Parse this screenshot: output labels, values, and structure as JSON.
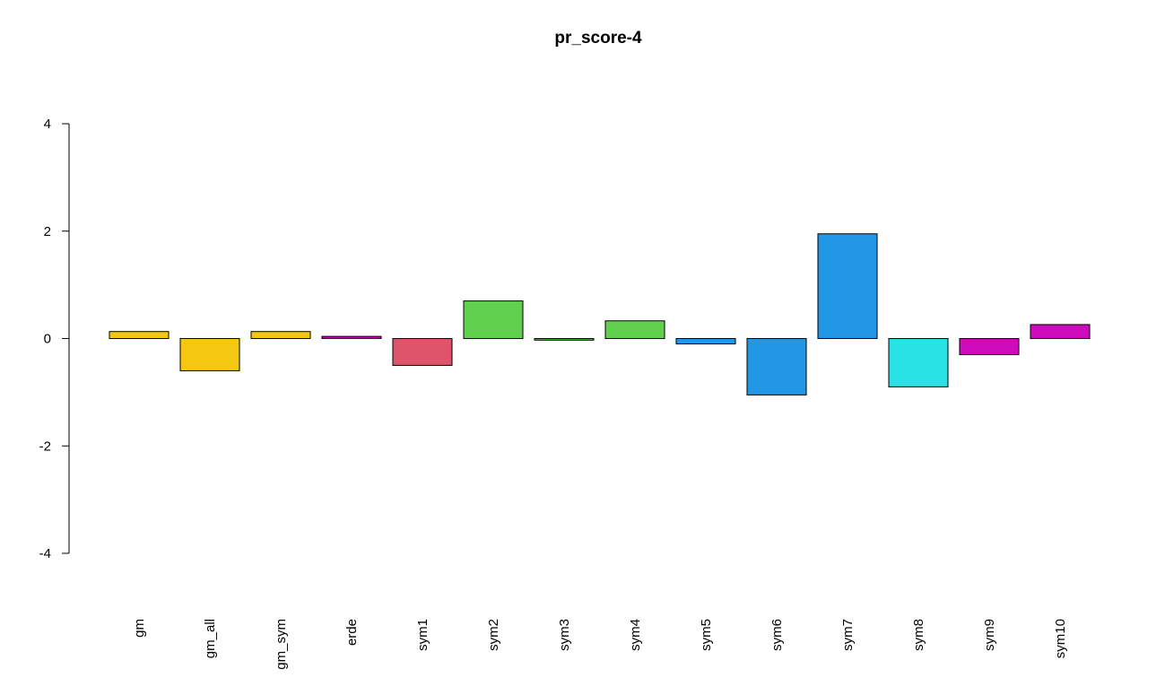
{
  "chart_data": {
    "type": "bar",
    "title": "pr_score-4",
    "xlabel": "",
    "ylabel": "",
    "ylim": [
      -4,
      4
    ],
    "yticks": [
      -4,
      -2,
      0,
      2,
      4
    ],
    "grid": false,
    "legend": "none",
    "categories": [
      "gm",
      "gm_all",
      "gm_sym",
      "erde",
      "sym1",
      "sym2",
      "sym3",
      "sym4",
      "sym5",
      "sym6",
      "sym7",
      "sym8",
      "sym9",
      "sym10"
    ],
    "values": [
      0.13,
      -0.6,
      0.13,
      0.04,
      -0.5,
      0.7,
      -0.03,
      0.33,
      -0.1,
      -1.05,
      1.95,
      -0.9,
      -0.3,
      0.26
    ],
    "colors": [
      "#F5C710",
      "#F5C710",
      "#F5C710",
      "#CD0BBC",
      "#DF536B",
      "#61D04F",
      "#61D04F",
      "#61D04F",
      "#2297E6",
      "#2297E6",
      "#2297E6",
      "#28E2E5",
      "#CD0BBC",
      "#CD0BBC"
    ]
  }
}
